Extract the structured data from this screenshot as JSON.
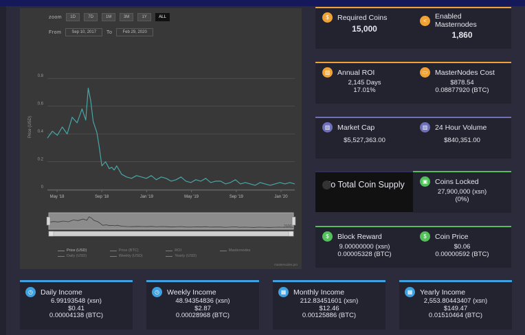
{
  "chart_controls": {
    "zoom_label": "zoom",
    "zoom_options": [
      "1D",
      "7D",
      "1M",
      "3M",
      "1Y",
      "ALL"
    ],
    "active_zoom": "ALL",
    "from_label": "From",
    "to_label": "To",
    "from_date": "Sep 10, 2017",
    "to_date": "Feb 29, 2020"
  },
  "chart_data": {
    "type": "line",
    "title": "",
    "ylabel": "Price (USD)",
    "ylim": [
      0,
      0.9
    ],
    "yticks": [
      "0",
      "0.2",
      "0.4",
      "0.6",
      "0.8"
    ],
    "x_tick_labels": [
      "May '18",
      "Sep '18",
      "Jan '19",
      "May '19",
      "Sep '19",
      "Jan '20"
    ],
    "navigator_label": "2020",
    "series": [
      {
        "name": "Price (USD)",
        "color": "#4aa6a6",
        "x": [
          0,
          0.02,
          0.04,
          0.06,
          0.08,
          0.1,
          0.12,
          0.14,
          0.155,
          0.165,
          0.175,
          0.185,
          0.2,
          0.21,
          0.22,
          0.235,
          0.25,
          0.26,
          0.27,
          0.28,
          0.3,
          0.32,
          0.34,
          0.36,
          0.38,
          0.4,
          0.42,
          0.44,
          0.46,
          0.48,
          0.5,
          0.52,
          0.54,
          0.56,
          0.58,
          0.6,
          0.62,
          0.64,
          0.66,
          0.68,
          0.7,
          0.72,
          0.74,
          0.76,
          0.78,
          0.8,
          0.82,
          0.84,
          0.86,
          0.88,
          0.9,
          0.92,
          0.94,
          0.96,
          0.98,
          1
        ],
        "values": [
          0.37,
          0.42,
          0.39,
          0.45,
          0.4,
          0.52,
          0.48,
          0.58,
          0.5,
          0.73,
          0.64,
          0.49,
          0.41,
          0.3,
          0.17,
          0.2,
          0.15,
          0.16,
          0.14,
          0.17,
          0.11,
          0.09,
          0.08,
          0.1,
          0.09,
          0.08,
          0.1,
          0.07,
          0.09,
          0.08,
          0.06,
          0.07,
          0.09,
          0.06,
          0.05,
          0.07,
          0.06,
          0.08,
          0.05,
          0.06,
          0.06,
          0.04,
          0.05,
          0.07,
          0.04,
          0.05,
          0.04,
          0.03,
          0.05,
          0.04,
          0.03,
          0.04,
          0.05,
          0.04,
          0.05,
          0.04
        ]
      }
    ],
    "legend": [
      {
        "label": "Price (USD)",
        "active": true
      },
      {
        "label": "Price (BTC)",
        "active": false
      },
      {
        "label": "ROI",
        "active": false
      },
      {
        "label": "Masternodes",
        "active": false
      },
      {
        "label": "Daily (USD)",
        "active": false
      },
      {
        "label": "Weekly (USD)",
        "active": false
      },
      {
        "label": "Yearly (USD)",
        "active": false
      }
    ],
    "credit": "masternodes.pro"
  },
  "stats": {
    "required_coins": {
      "title": "Required Coins",
      "value": "15,000"
    },
    "enabled_masternodes": {
      "title": "Enabled Masternodes",
      "value": "1,860"
    },
    "annual_roi": {
      "title": "Annual ROI",
      "line1": "2,145 Days",
      "line2": "17.01%"
    },
    "masternodes_cost": {
      "title": "MasterNodes Cost",
      "line1": "$878.54",
      "line2": "0.08877920 (BTC)"
    },
    "market_cap": {
      "title": "Market Cap",
      "value": "$5,527,363.00"
    },
    "volume_24h": {
      "title": "24 Hour Volume",
      "value": "$840,351.00"
    },
    "total_supply_notice": "No Total Coin Supply",
    "coins_locked": {
      "title": "Coins Locked",
      "line1": "27,900,000 (xsn)",
      "line2": "(0%)"
    },
    "block_reward": {
      "title": "Block Reward",
      "line1": "9.00000000 (xsn)",
      "line2": "0.00005328 (BTC)"
    },
    "coin_price": {
      "title": "Coin Price",
      "line1": "$0.06",
      "line2": "0.00000592 (BTC)"
    }
  },
  "income": {
    "daily": {
      "title": "Daily Income",
      "xsn": "6.99193548 (xsn)",
      "usd": "$0.41",
      "btc": "0.00004138 (BTC)"
    },
    "weekly": {
      "title": "Weekly Income",
      "xsn": "48.94354836 (xsn)",
      "usd": "$2.87",
      "btc": "0.00028968 (BTC)"
    },
    "monthly": {
      "title": "Monthly Income",
      "xsn": "212.83451601 (xsn)",
      "usd": "$12.46",
      "btc": "0.00125886 (BTC)"
    },
    "yearly": {
      "title": "Yearly Income",
      "xsn": "2,553.80443407 (xsn)",
      "usd": "$149.47",
      "btc": "0.01510464 (BTC)"
    }
  }
}
